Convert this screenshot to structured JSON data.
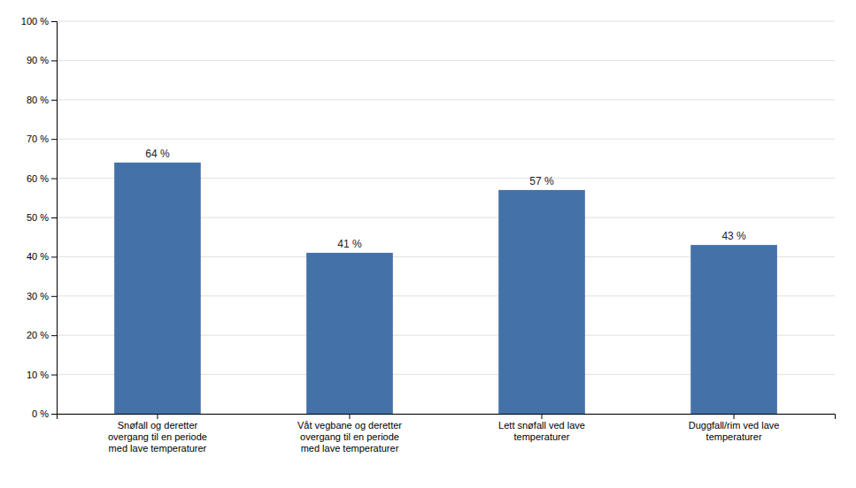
{
  "chart_data": {
    "type": "bar",
    "categories": [
      "Snøfall og deretter\novergang til en periode\nmed lave temperaturer",
      "Våt vegbane og deretter\novergang til en periode\nmed lave temperaturer",
      "Lett snøfall ved lave\ntemperaturer",
      "Duggfall/rim ved lave\ntemperaturer"
    ],
    "values": [
      64,
      41,
      57,
      43
    ],
    "value_labels": [
      "64 %",
      "41 %",
      "57 %",
      "43 %"
    ],
    "data_labels": true,
    "color": "#4472a8",
    "ylim": [
      0,
      100
    ],
    "yticks": [
      {
        "value": 0,
        "label": "0 %"
      },
      {
        "value": 10,
        "label": "10 %"
      },
      {
        "value": 20,
        "label": "20 %"
      },
      {
        "value": 30,
        "label": "30 %"
      },
      {
        "value": 40,
        "label": "40 %"
      },
      {
        "value": 50,
        "label": "50 %"
      },
      {
        "value": 60,
        "label": "60 %"
      },
      {
        "value": 70,
        "label": "70 %"
      },
      {
        "value": 80,
        "label": "80 %"
      },
      {
        "value": 90,
        "label": "90 %"
      },
      {
        "value": 100,
        "label": "100 %"
      }
    ],
    "grid": true
  }
}
